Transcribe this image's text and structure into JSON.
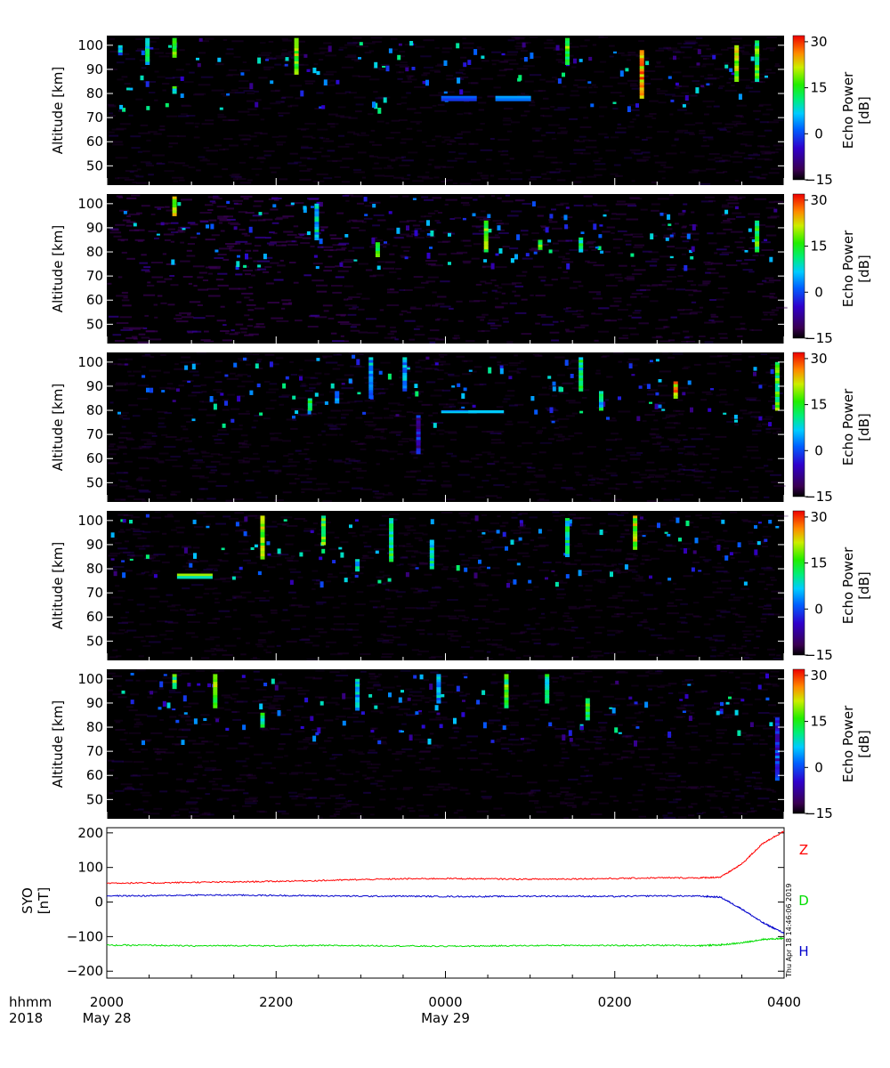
{
  "chart_data": [
    {
      "type": "heatmap",
      "panel": 1,
      "ylabel": "Altitude [km]",
      "y_ticks": [
        50,
        60,
        70,
        80,
        90,
        100
      ],
      "ylim": [
        42,
        104
      ],
      "colorbar": {
        "label": "Echo Power",
        "unit": "[dB]",
        "ticks": [
          30,
          15,
          0,
          -15
        ],
        "range": [
          -15,
          32
        ]
      },
      "features": [
        {
          "x_frac": 0.02,
          "alt": [
            96,
            100
          ],
          "db": 5
        },
        {
          "x_frac": 0.06,
          "alt": [
            92,
            103
          ],
          "db": 10
        },
        {
          "x_frac": 0.1,
          "alt": [
            95,
            103
          ],
          "db": 18
        },
        {
          "x_frac": 0.1,
          "alt": [
            80,
            83
          ],
          "db": 12
        },
        {
          "x_frac": 0.28,
          "alt": [
            88,
            103
          ],
          "db": 18
        },
        {
          "x_frac": 0.52,
          "alt": [
            77,
            79
          ],
          "db": 2
        },
        {
          "x_frac": 0.6,
          "alt": [
            77,
            79
          ],
          "db": 2
        },
        {
          "x_frac": 0.68,
          "alt": [
            92,
            103
          ],
          "db": 15
        },
        {
          "x_frac": 0.79,
          "alt": [
            78,
            98
          ],
          "db": 25
        },
        {
          "x_frac": 0.93,
          "alt": [
            85,
            100
          ],
          "db": 20
        },
        {
          "x_frac": 0.96,
          "alt": [
            85,
            102
          ],
          "db": 15
        }
      ]
    },
    {
      "type": "heatmap",
      "panel": 2,
      "ylabel": "Altitude [km]",
      "y_ticks": [
        50,
        60,
        70,
        80,
        90,
        100
      ],
      "ylim": [
        42,
        104
      ],
      "colorbar": {
        "label": "Echo Power",
        "unit": "[dB]",
        "ticks": [
          30,
          15,
          0,
          -15
        ],
        "range": [
          -15,
          32
        ]
      },
      "features": [
        {
          "x_frac": 0.1,
          "alt": [
            95,
            103
          ],
          "db": 20
        },
        {
          "x_frac": 0.31,
          "alt": [
            85,
            100
          ],
          "db": 8
        },
        {
          "x_frac": 0.4,
          "alt": [
            78,
            84
          ],
          "db": 15
        },
        {
          "x_frac": 0.56,
          "alt": [
            80,
            93
          ],
          "db": 18
        },
        {
          "x_frac": 0.64,
          "alt": [
            81,
            85
          ],
          "db": 15
        },
        {
          "x_frac": 0.7,
          "alt": [
            80,
            86
          ],
          "db": 12
        },
        {
          "x_frac": 0.96,
          "alt": [
            80,
            93
          ],
          "db": 15
        }
      ]
    },
    {
      "type": "heatmap",
      "panel": 3,
      "ylabel": "Altitude [km]",
      "y_ticks": [
        50,
        60,
        70,
        80,
        90,
        100
      ],
      "ylim": [
        42,
        104
      ],
      "colorbar": {
        "label": "Echo Power",
        "unit": "[dB]",
        "ticks": [
          30,
          15,
          0,
          -15
        ],
        "range": [
          -15,
          32
        ]
      },
      "features": [
        {
          "x_frac": 0.3,
          "alt": [
            80,
            85
          ],
          "db": 10
        },
        {
          "x_frac": 0.34,
          "alt": [
            83,
            88
          ],
          "db": 5
        },
        {
          "x_frac": 0.39,
          "alt": [
            85,
            102
          ],
          "db": 5
        },
        {
          "x_frac": 0.44,
          "alt": [
            88,
            102
          ],
          "db": 3
        },
        {
          "x_frac": 0.46,
          "alt": [
            62,
            78
          ],
          "db": -5
        },
        {
          "x_frac": 0.52,
          "alt": [
            79,
            80
          ],
          "db": 8
        },
        {
          "x_frac": 0.56,
          "alt": [
            79,
            80
          ],
          "db": 5
        },
        {
          "x_frac": 0.7,
          "alt": [
            88,
            102
          ],
          "db": 10
        },
        {
          "x_frac": 0.73,
          "alt": [
            80,
            88
          ],
          "db": 8
        },
        {
          "x_frac": 0.84,
          "alt": [
            85,
            92
          ],
          "db": 25
        },
        {
          "x_frac": 0.99,
          "alt": [
            80,
            100
          ],
          "db": 15
        }
      ]
    },
    {
      "type": "heatmap",
      "panel": 4,
      "ylabel": "Altitude [km]",
      "y_ticks": [
        50,
        60,
        70,
        80,
        90,
        100
      ],
      "ylim": [
        42,
        104
      ],
      "colorbar": {
        "label": "Echo Power",
        "unit": "[dB]",
        "ticks": [
          30,
          15,
          0,
          -15
        ],
        "range": [
          -15,
          32
        ]
      },
      "features": [
        {
          "x_frac": 0.13,
          "alt": [
            76,
            78
          ],
          "db": 15
        },
        {
          "x_frac": 0.23,
          "alt": [
            84,
            102
          ],
          "db": 20
        },
        {
          "x_frac": 0.32,
          "alt": [
            90,
            102
          ],
          "db": 15
        },
        {
          "x_frac": 0.37,
          "alt": [
            79,
            84
          ],
          "db": 8
        },
        {
          "x_frac": 0.42,
          "alt": [
            83,
            101
          ],
          "db": 12
        },
        {
          "x_frac": 0.48,
          "alt": [
            80,
            92
          ],
          "db": 10
        },
        {
          "x_frac": 0.68,
          "alt": [
            85,
            101
          ],
          "db": 10
        },
        {
          "x_frac": 0.78,
          "alt": [
            88,
            102
          ],
          "db": 20
        }
      ]
    },
    {
      "type": "heatmap",
      "panel": 5,
      "ylabel": "Altitude [km]",
      "y_ticks": [
        50,
        60,
        70,
        80,
        90,
        100
      ],
      "ylim": [
        42,
        104
      ],
      "colorbar": {
        "label": "Echo Power",
        "unit": "[dB]",
        "ticks": [
          30,
          15,
          0,
          -15
        ],
        "range": [
          -15,
          32
        ]
      },
      "features": [
        {
          "x_frac": 0.1,
          "alt": [
            96,
            102
          ],
          "db": 15
        },
        {
          "x_frac": 0.16,
          "alt": [
            88,
            102
          ],
          "db": 18
        },
        {
          "x_frac": 0.23,
          "alt": [
            80,
            86
          ],
          "db": 12
        },
        {
          "x_frac": 0.37,
          "alt": [
            87,
            100
          ],
          "db": 5
        },
        {
          "x_frac": 0.49,
          "alt": [
            90,
            102
          ],
          "db": 5
        },
        {
          "x_frac": 0.59,
          "alt": [
            88,
            102
          ],
          "db": 15
        },
        {
          "x_frac": 0.65,
          "alt": [
            90,
            102
          ],
          "db": 10
        },
        {
          "x_frac": 0.71,
          "alt": [
            83,
            92
          ],
          "db": 15
        },
        {
          "x_frac": 0.99,
          "alt": [
            58,
            84
          ],
          "db": -2
        }
      ]
    },
    {
      "type": "line",
      "panel": 6,
      "ylabel": "SYO",
      "ylabel_unit": "[nT]",
      "y_ticks": [
        200,
        100,
        0,
        -100,
        -200
      ],
      "ylim": [
        -220,
        215
      ],
      "x": [
        "2000",
        "2030",
        "2100",
        "2130",
        "2200",
        "2230",
        "2300",
        "2330",
        "0000",
        "0030",
        "0100",
        "0130",
        "0200",
        "0230",
        "0300",
        "0315",
        "0330",
        "0345",
        "0400"
      ],
      "series": [
        {
          "name": "Z",
          "color": "#ff0000",
          "values": [
            55,
            55,
            57,
            58,
            60,
            62,
            65,
            67,
            68,
            67,
            66,
            67,
            68,
            70,
            70,
            72,
            110,
            170,
            205
          ]
        },
        {
          "name": "D",
          "color": "#00dd00",
          "values": [
            -125,
            -125,
            -127,
            -126,
            -127,
            -126,
            -126,
            -127,
            -128,
            -127,
            -126,
            -125,
            -126,
            -125,
            -126,
            -124,
            -118,
            -108,
            -105
          ]
        },
        {
          "name": "H",
          "color": "#0000cc",
          "values": [
            18,
            18,
            20,
            20,
            19,
            18,
            17,
            17,
            16,
            16,
            17,
            17,
            16,
            18,
            17,
            14,
            -20,
            -60,
            -90
          ]
        }
      ]
    }
  ],
  "time_axis": {
    "row_labels": [
      "hhmm",
      "2018"
    ],
    "ticks": [
      {
        "time": "2000",
        "date": "May 28"
      },
      {
        "time": "2200",
        "date": ""
      },
      {
        "time": "0000",
        "date": "May 29"
      },
      {
        "time": "0200",
        "date": ""
      },
      {
        "time": "0400",
        "date": ""
      }
    ]
  },
  "stamp": "Thu Apr 18 14:46:06 2019",
  "colors": {
    "background": "#ffffff",
    "panel_background": "#000000"
  }
}
